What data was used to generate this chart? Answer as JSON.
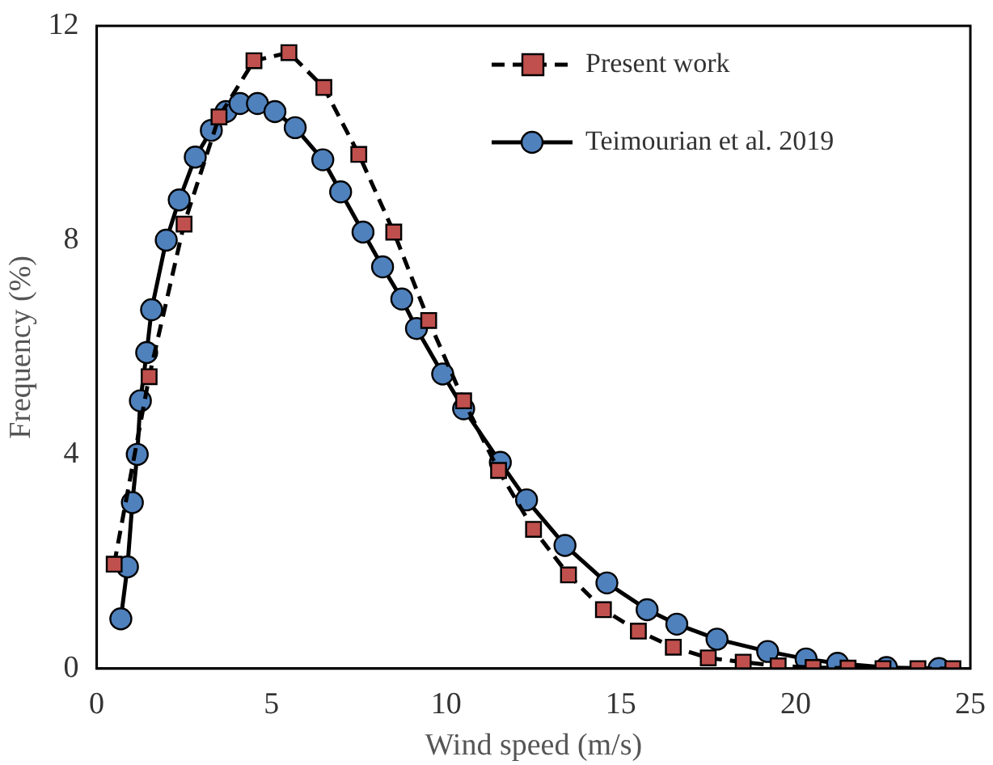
{
  "chart_data": {
    "type": "line",
    "xlabel": "Wind speed (m/s)",
    "ylabel": "Frequency (%)",
    "xlim": [
      0,
      25
    ],
    "xticks": [
      0,
      5,
      10,
      15,
      20,
      25
    ],
    "ylim": [
      0,
      12
    ],
    "yticks": [
      0,
      4,
      8,
      12
    ],
    "grid": false,
    "legend": "top right",
    "series": [
      {
        "name": "Present work",
        "color": "#c0504d",
        "marker": "square",
        "line_style": "dashed",
        "x": [
          0.5,
          1.5,
          2.5,
          3.5,
          4.5,
          5.5,
          6.5,
          7.5,
          8.5,
          9.5,
          10.5,
          11.5,
          12.5,
          13.5,
          14.5,
          15.5,
          16.5,
          17.5,
          18.5,
          19.5,
          20.5,
          21.5,
          22.5,
          23.5,
          24.5
        ],
        "values": [
          1.95,
          5.45,
          8.3,
          10.3,
          11.35,
          11.5,
          10.85,
          9.6,
          8.15,
          6.5,
          5.0,
          3.7,
          2.6,
          1.75,
          1.1,
          0.7,
          0.4,
          0.2,
          0.12,
          0.05,
          0.02,
          0.01,
          0,
          0,
          0
        ]
      },
      {
        "name": "Teimourian et al. 2019",
        "color": "#4f81bd",
        "marker": "circle",
        "line_style": "solid",
        "x": [
          0.69,
          0.88,
          1.02,
          1.16,
          1.25,
          1.43,
          1.57,
          1.99,
          2.36,
          2.82,
          3.28,
          3.7,
          4.1,
          4.6,
          5.1,
          5.68,
          6.47,
          6.98,
          7.62,
          8.18,
          8.73,
          9.15,
          9.9,
          10.5,
          11.55,
          12.3,
          13.4,
          14.6,
          15.75,
          16.6,
          17.75,
          19.2,
          20.3,
          21.2,
          22.6,
          24.1
        ],
        "values": [
          0.93,
          1.9,
          3.1,
          4.0,
          5.0,
          5.9,
          6.7,
          8.0,
          8.75,
          9.55,
          10.05,
          10.4,
          10.55,
          10.55,
          10.4,
          10.1,
          9.5,
          8.9,
          8.15,
          7.5,
          6.9,
          6.35,
          5.5,
          4.85,
          3.85,
          3.15,
          2.3,
          1.6,
          1.1,
          0.83,
          0.55,
          0.32,
          0.18,
          0.1,
          0.02,
          0
        ]
      }
    ]
  }
}
